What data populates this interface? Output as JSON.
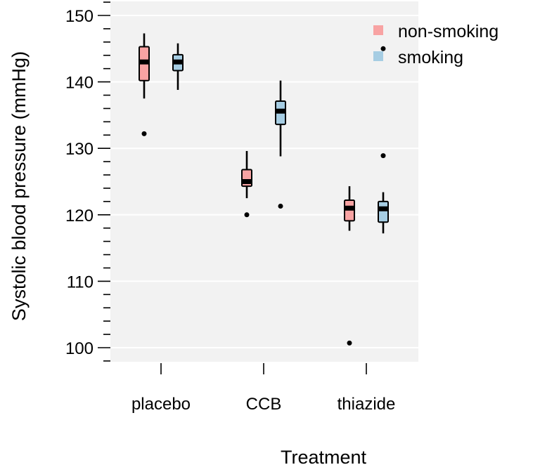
{
  "chart_data": {
    "type": "boxplot",
    "xlabel": "Treatment",
    "ylabel": "Systolic blood pressure (mmHg)",
    "ylim": [
      98,
      152
    ],
    "y_ticks": [
      100,
      110,
      120,
      130,
      140,
      150
    ],
    "y_minor_step": 2,
    "categories": [
      "placebo",
      "CCB",
      "thiazide"
    ],
    "grid": true,
    "legend_position": "top-right",
    "series": [
      {
        "name": "non-smoking",
        "color": "#f8a3a3",
        "boxes": [
          {
            "category": "placebo",
            "min": 137.5,
            "q1": 140.2,
            "median": 143.0,
            "q3": 145.3,
            "max": 147.3,
            "outliers": [
              132.2
            ]
          },
          {
            "category": "CCB",
            "min": 122.5,
            "q1": 124.3,
            "median": 125.0,
            "q3": 126.8,
            "max": 129.6,
            "outliers": [
              120.0
            ]
          },
          {
            "category": "thiazide",
            "min": 117.6,
            "q1": 119.1,
            "median": 121.0,
            "q3": 122.2,
            "max": 124.3,
            "outliers": [
              100.7
            ]
          }
        ]
      },
      {
        "name": "smoking",
        "color": "#a6cde3",
        "boxes": [
          {
            "category": "placebo",
            "min": 138.8,
            "q1": 141.7,
            "median": 143.0,
            "q3": 144.1,
            "max": 145.8,
            "outliers": []
          },
          {
            "category": "CCB",
            "min": 128.8,
            "q1": 133.6,
            "median": 135.6,
            "q3": 137.1,
            "max": 140.2,
            "outliers": [
              121.3
            ]
          },
          {
            "category": "thiazide",
            "min": 117.2,
            "q1": 118.9,
            "median": 120.9,
            "q3": 122.0,
            "max": 123.4,
            "outliers": [
              128.9,
              145.0
            ]
          }
        ]
      }
    ]
  }
}
